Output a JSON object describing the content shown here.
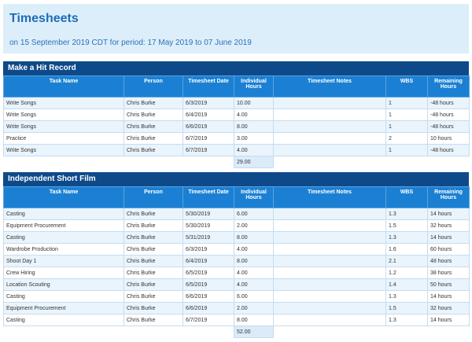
{
  "header": {
    "title": "Timesheets",
    "subtitle": "on 15 September 2019 CDT for period: 17 May 2019 to 07 June 2019"
  },
  "sections": [
    {
      "title": "Make a Hit Record",
      "columns": [
        "Task Name",
        "Person",
        "Timesheet Date",
        "Individual Hours",
        "Timesheet Notes",
        "WBS",
        "Remaining Hours"
      ],
      "rows": [
        {
          "task": "Write Songs",
          "person": "Chris Burke",
          "date": "6/3/2019",
          "hours": "10.00",
          "wbs": "1",
          "remaining": "-48 hours"
        },
        {
          "task": "Write Songs",
          "person": "Chris Burke",
          "date": "6/4/2019",
          "hours": "4.00",
          "wbs": "1",
          "remaining": "-48 hours"
        },
        {
          "task": "Write Songs",
          "person": "Chris Burke",
          "date": "6/6/2019",
          "hours": "8.00",
          "wbs": "1",
          "remaining": "-48 hours"
        },
        {
          "task": "Practice",
          "person": "Chris Burke",
          "date": "6/7/2019",
          "hours": "3.00",
          "wbs": "2",
          "remaining": "10 hours"
        },
        {
          "task": "Write Songs",
          "person": "Chris Burke",
          "date": "6/7/2019",
          "hours": "4.00",
          "wbs": "1",
          "remaining": "-48 hours"
        }
      ],
      "total": "29.00"
    },
    {
      "title": "Independent Short Film",
      "columns": [
        "Task Name",
        "Person",
        "Timesheet Date",
        "Individual Hours",
        "Timesheet Notes",
        "WBS",
        "Remaining Hours"
      ],
      "rows": [
        {
          "task": "Casting",
          "person": "Chris Burke",
          "date": "5/30/2019",
          "hours": "6.00",
          "wbs": "1.3",
          "remaining": "14 hours"
        },
        {
          "task": "Equipment Procurement",
          "person": "Chris Burke",
          "date": "5/30/2019",
          "hours": "2.00",
          "wbs": "1.5",
          "remaining": "32 hours"
        },
        {
          "task": "Casting",
          "person": "Chris Burke",
          "date": "5/31/2019",
          "hours": "8.00",
          "wbs": "1.3",
          "remaining": "14 hours"
        },
        {
          "task": "Wardrobe Production",
          "person": "Chris Burke",
          "date": "6/3/2019",
          "hours": "4.00",
          "wbs": "1.6",
          "remaining": "60 hours"
        },
        {
          "task": "Shoot Day 1",
          "person": "Chris Burke",
          "date": "6/4/2019",
          "hours": "8.00",
          "wbs": "2.1",
          "remaining": "48 hours"
        },
        {
          "task": "Crew Hiring",
          "person": "Chris Burke",
          "date": "6/5/2019",
          "hours": "4.00",
          "wbs": "1.2",
          "remaining": "38 hours"
        },
        {
          "task": "Location Scouting",
          "person": "Chris Burke",
          "date": "6/5/2019",
          "hours": "4.00",
          "wbs": "1.4",
          "remaining": "50 hours"
        },
        {
          "task": "Casting",
          "person": "Chris Burke",
          "date": "6/6/2019",
          "hours": "6.00",
          "wbs": "1.3",
          "remaining": "14 hours"
        },
        {
          "task": "Equipment Procurement",
          "person": "Chris Burke",
          "date": "6/6/2019",
          "hours": "2.00",
          "wbs": "1.5",
          "remaining": "32 hours"
        },
        {
          "task": "Casting",
          "person": "Chris Burke",
          "date": "6/7/2019",
          "hours": "8.00",
          "wbs": "1.3",
          "remaining": "14 hours"
        }
      ],
      "total": "52.00"
    }
  ]
}
